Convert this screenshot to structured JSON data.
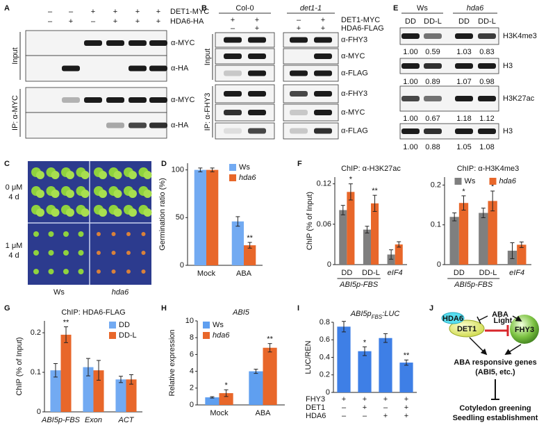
{
  "letters": [
    "A",
    "B",
    "C",
    "D",
    "E",
    "F",
    "G",
    "H",
    "I",
    "J"
  ],
  "panels": {
    "A": {
      "conditions": [
        {
          "name": "DET1-MYC",
          "signs": [
            "–",
            "–",
            "+",
            "+",
            "+",
            "+"
          ]
        },
        {
          "name": "HDA6-HA",
          "signs": [
            "–",
            "+",
            "–",
            "+",
            "+",
            "+"
          ]
        }
      ],
      "sections": [
        {
          "name": "Input",
          "rows": [
            "α-MYC",
            "α-HA"
          ]
        },
        {
          "name": "IP: α-MYC",
          "rows": [
            "α-MYC",
            "α-HA"
          ]
        }
      ]
    },
    "B": {
      "genotypes": [
        "Col-0",
        "det1-1"
      ],
      "conditions": [
        {
          "name": "DET1-MYC",
          "signs": [
            "+",
            "+",
            "–",
            "+"
          ]
        },
        {
          "name": "HDA6-FLAG",
          "signs": [
            "–",
            "+",
            "+",
            "+"
          ]
        }
      ],
      "sections": [
        {
          "name": "Input",
          "rows": [
            "α-FHY3",
            "α-MYC",
            "α-FLAG"
          ]
        },
        {
          "name": "IP: α-FHY3",
          "rows": [
            "α-FHY3",
            "α-MYC",
            "α-FLAG"
          ]
        }
      ]
    },
    "C": {
      "treatments": [
        [
          "0 μM",
          "4 d"
        ],
        [
          "1 μM",
          "4 d"
        ]
      ],
      "genotypes": [
        "Ws",
        "hda6"
      ]
    },
    "E": {
      "genotypes": [
        "Ws",
        "hda6"
      ],
      "lanes": [
        "DD",
        "DD-L",
        "DD",
        "DD-L"
      ],
      "rows": [
        {
          "name": "H3K4me3",
          "quant": [
            "1.00",
            "0.59",
            "1.03",
            "0.83"
          ]
        },
        {
          "name": "H3",
          "quant": [
            "1.00",
            "0.89",
            "1.07",
            "0.98"
          ]
        },
        {
          "name": "H3K27ac",
          "quant": [
            "1.00",
            "0.67",
            "1.18",
            "1.12"
          ]
        },
        {
          "name": "H3",
          "quant": [
            "1.00",
            "0.88",
            "1.05",
            "1.08"
          ]
        }
      ]
    },
    "J": {
      "aba": "ABA",
      "hda6": "HDA6",
      "det1": "DET1",
      "light": "Light",
      "fhy3": "FHY3",
      "genes": "ABA responsive genes",
      "genes_note": "(ABI5, etc.)",
      "outcomes": [
        "Cotyledon greening",
        "Seedling establishment"
      ]
    }
  },
  "chart_data": [
    {
      "type": "bar",
      "y_label": "Germination ratio (%)",
      "categories": [
        "Mock",
        "ABA"
      ],
      "series": [
        {
          "name": "Ws",
          "color": "#72aaf2",
          "values": [
            100,
            46
          ],
          "errors": [
            2,
            5
          ]
        },
        {
          "name": "hda6",
          "color": "#e8672a",
          "values": [
            100,
            21
          ],
          "errors": [
            2,
            3
          ],
          "significance": [
            null,
            "**"
          ]
        }
      ],
      "ylim": [
        0,
        107
      ],
      "yticks": [
        0,
        50,
        100
      ],
      "legend": "upper right"
    },
    {
      "type": "bar",
      "title": "ChIP: α-H3K27ac",
      "y_label": "ChIP (% of Input)",
      "categories": [
        "DD",
        "DD-L",
        "eIF4"
      ],
      "group_label": "ABI5p-FBS",
      "series": [
        {
          "color": "#7f7f7f",
          "values": [
            0.081,
            0.052,
            0.015
          ],
          "errors": [
            0.007,
            0.005,
            0.007
          ]
        },
        {
          "color": "#e8672a",
          "values": [
            0.108,
            0.091,
            0.03
          ],
          "errors": [
            0.012,
            0.012,
            0.004
          ],
          "significance": [
            "*",
            "**",
            null
          ]
        }
      ],
      "ylim": [
        0,
        0.13
      ],
      "yticks": [
        0,
        0.06,
        0.12
      ]
    },
    {
      "type": "bar",
      "title": "ChIP: α-H3K4me3",
      "categories": [
        "DD",
        "DD-L",
        "eIF4"
      ],
      "group_label": "ABI5p-FBS",
      "series": [
        {
          "name": "Ws",
          "color": "#7f7f7f",
          "values": [
            0.12,
            0.13,
            0.035
          ],
          "errors": [
            0.01,
            0.012,
            0.02
          ]
        },
        {
          "name": "hda6",
          "color": "#e8672a",
          "values": [
            0.155,
            0.16,
            0.05
          ],
          "errors": [
            0.018,
            0.025,
            0.007
          ],
          "significance": [
            "*",
            "*",
            null
          ]
        }
      ],
      "ylim": [
        0,
        0.22
      ],
      "yticks": [
        0,
        0.1,
        0.2
      ],
      "legend": "upper center"
    },
    {
      "type": "bar",
      "title": "ChIP: HDA6-FLAG",
      "y_label": "ChIP (% of Input)",
      "categories": [
        "ABI5p-FBS",
        "Exon",
        "ACT"
      ],
      "series": [
        {
          "name": "DD",
          "color": "#72aaf2",
          "values": [
            0.105,
            0.113,
            0.082
          ],
          "errors": [
            0.017,
            0.022,
            0.008
          ]
        },
        {
          "name": "DD-L",
          "color": "#e8672a",
          "values": [
            0.195,
            0.105,
            0.082
          ],
          "errors": [
            0.02,
            0.025,
            0.012
          ],
          "significance": [
            "**",
            null,
            null
          ]
        }
      ],
      "ylim": [
        0,
        0.23
      ],
      "yticks": [
        0,
        0.1,
        0.2
      ],
      "legend": "upper right"
    },
    {
      "type": "bar",
      "title": "ABI5",
      "y_label": "Relative expression",
      "categories": [
        "Mock",
        "ABA"
      ],
      "series": [
        {
          "name": "Ws",
          "color": "#5f9ff0",
          "values": [
            0.9,
            4
          ],
          "errors": [
            0.08,
            0.25
          ]
        },
        {
          "name": "hda6",
          "color": "#e8672a",
          "values": [
            1.4,
            6.8
          ],
          "errors": [
            0.4,
            0.5
          ],
          "significance": [
            "*",
            "**"
          ]
        }
      ],
      "ylim": [
        0,
        10
      ],
      "yticks": [
        0,
        2,
        4,
        6,
        8,
        10
      ],
      "legend": "upper left"
    },
    {
      "type": "bar",
      "title_parts": [
        "ABI5p",
        "FBS",
        ":LUC"
      ],
      "y_label": "LUC/REN",
      "color": "#3e7fe6",
      "values": [
        0.75,
        0.47,
        0.62,
        0.34
      ],
      "errors": [
        0.06,
        0.05,
        0.05,
        0.03
      ],
      "significance": [
        null,
        "*",
        null,
        "**"
      ],
      "ylim": [
        0,
        0.8
      ],
      "yticks": [
        0,
        0.2,
        0.4,
        0.6,
        0.8
      ],
      "table": [
        {
          "name": "FHY3",
          "signs": [
            "+",
            "+",
            "+",
            "+"
          ]
        },
        {
          "name": "DET1",
          "signs": [
            "–",
            "+",
            "–",
            "+"
          ]
        },
        {
          "name": "HDA6",
          "signs": [
            "–",
            "–",
            "+",
            "+"
          ]
        }
      ]
    }
  ]
}
